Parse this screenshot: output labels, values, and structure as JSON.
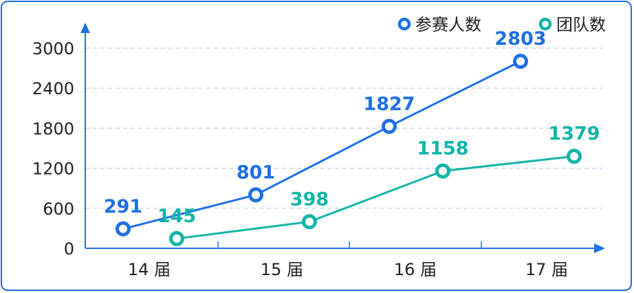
{
  "chart_data": {
    "type": "line",
    "categories": [
      "14 届",
      "15 届",
      "16 届",
      "17 届"
    ],
    "series": [
      {
        "name": "参赛人数",
        "values": [
          291,
          801,
          1827,
          2803
        ],
        "color": "#1f6fe5"
      },
      {
        "name": "团队数",
        "values": [
          145,
          398,
          1158,
          1379
        ],
        "color": "#12b5a6"
      }
    ],
    "yticks": [
      0,
      600,
      1200,
      1800,
      2400,
      3000
    ],
    "ylim": [
      0,
      3000
    ],
    "grid": true,
    "legend_position": "top-right",
    "title": "",
    "xlabel": "",
    "ylabel": ""
  }
}
